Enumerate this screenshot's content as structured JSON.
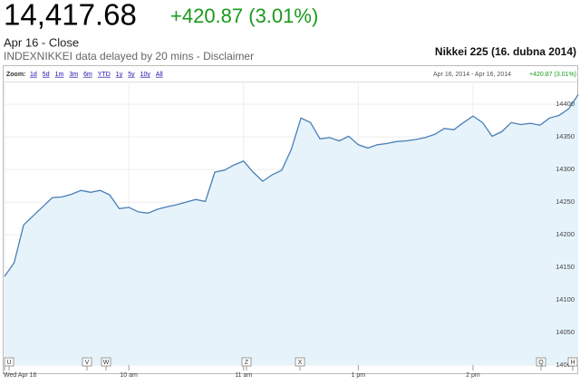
{
  "header": {
    "price": "14,417.68",
    "change": "+420.87 (3.01%)",
    "date_status": "Apr 16 - Close",
    "source_note": "INDEXNIKKEI data delayed by 20 mins - Disclaimer",
    "caption": "Nikkei 225 (16. dubna 2014)"
  },
  "toolbar": {
    "zoom_label": "Zoom:",
    "zoom_options": [
      "1d",
      "5d",
      "1m",
      "3m",
      "6m",
      "YTD",
      "1y",
      "5y",
      "10y",
      "All"
    ],
    "range": "Apr 16, 2014 - Apr 16, 2014",
    "range_change": "+420.87 (3.01%)"
  },
  "event_flags": [
    "U",
    "V",
    "W",
    "Z",
    "X",
    "Q",
    "H"
  ],
  "chart_data": {
    "type": "area",
    "categories": [
      "Wed Apr 16",
      null,
      null,
      null,
      null,
      null,
      null,
      null,
      null,
      null,
      null,
      null,
      null,
      "10 am",
      null,
      null,
      null,
      null,
      null,
      null,
      null,
      null,
      null,
      null,
      null,
      "11 am",
      null,
      null,
      null,
      null,
      null,
      null,
      null,
      null,
      null,
      null,
      null,
      "1 pm",
      null,
      null,
      null,
      null,
      null,
      null,
      null,
      null,
      null,
      null,
      null,
      "2 pm",
      null,
      null,
      null,
      null,
      null,
      null,
      null,
      null,
      null,
      null,
      null
    ],
    "values": [
      14136,
      14157,
      14215,
      14229,
      14243,
      14257,
      14258,
      14262,
      14268,
      14265,
      14268,
      14261,
      14240,
      14242,
      14235,
      14233,
      14239,
      14243,
      14246,
      14250,
      14254,
      14251,
      14296,
      14299,
      14307,
      14313,
      14296,
      14282,
      14292,
      14299,
      14331,
      14379,
      14372,
      14347,
      14349,
      14344,
      14351,
      14338,
      14333,
      14338,
      14340,
      14343,
      14344,
      14346,
      14349,
      14354,
      14363,
      14361,
      14372,
      14382,
      14372,
      14351,
      14358,
      14372,
      14369,
      14371,
      14368,
      14379,
      14383,
      14393,
      14415
    ],
    "color": "#4a7fb5",
    "fill": "#e6f3fb",
    "ylim": [
      14000,
      14435
    ],
    "yticks": [
      14000,
      14050,
      14100,
      14150,
      14200,
      14250,
      14300,
      14350,
      14400
    ],
    "grid": true
  }
}
